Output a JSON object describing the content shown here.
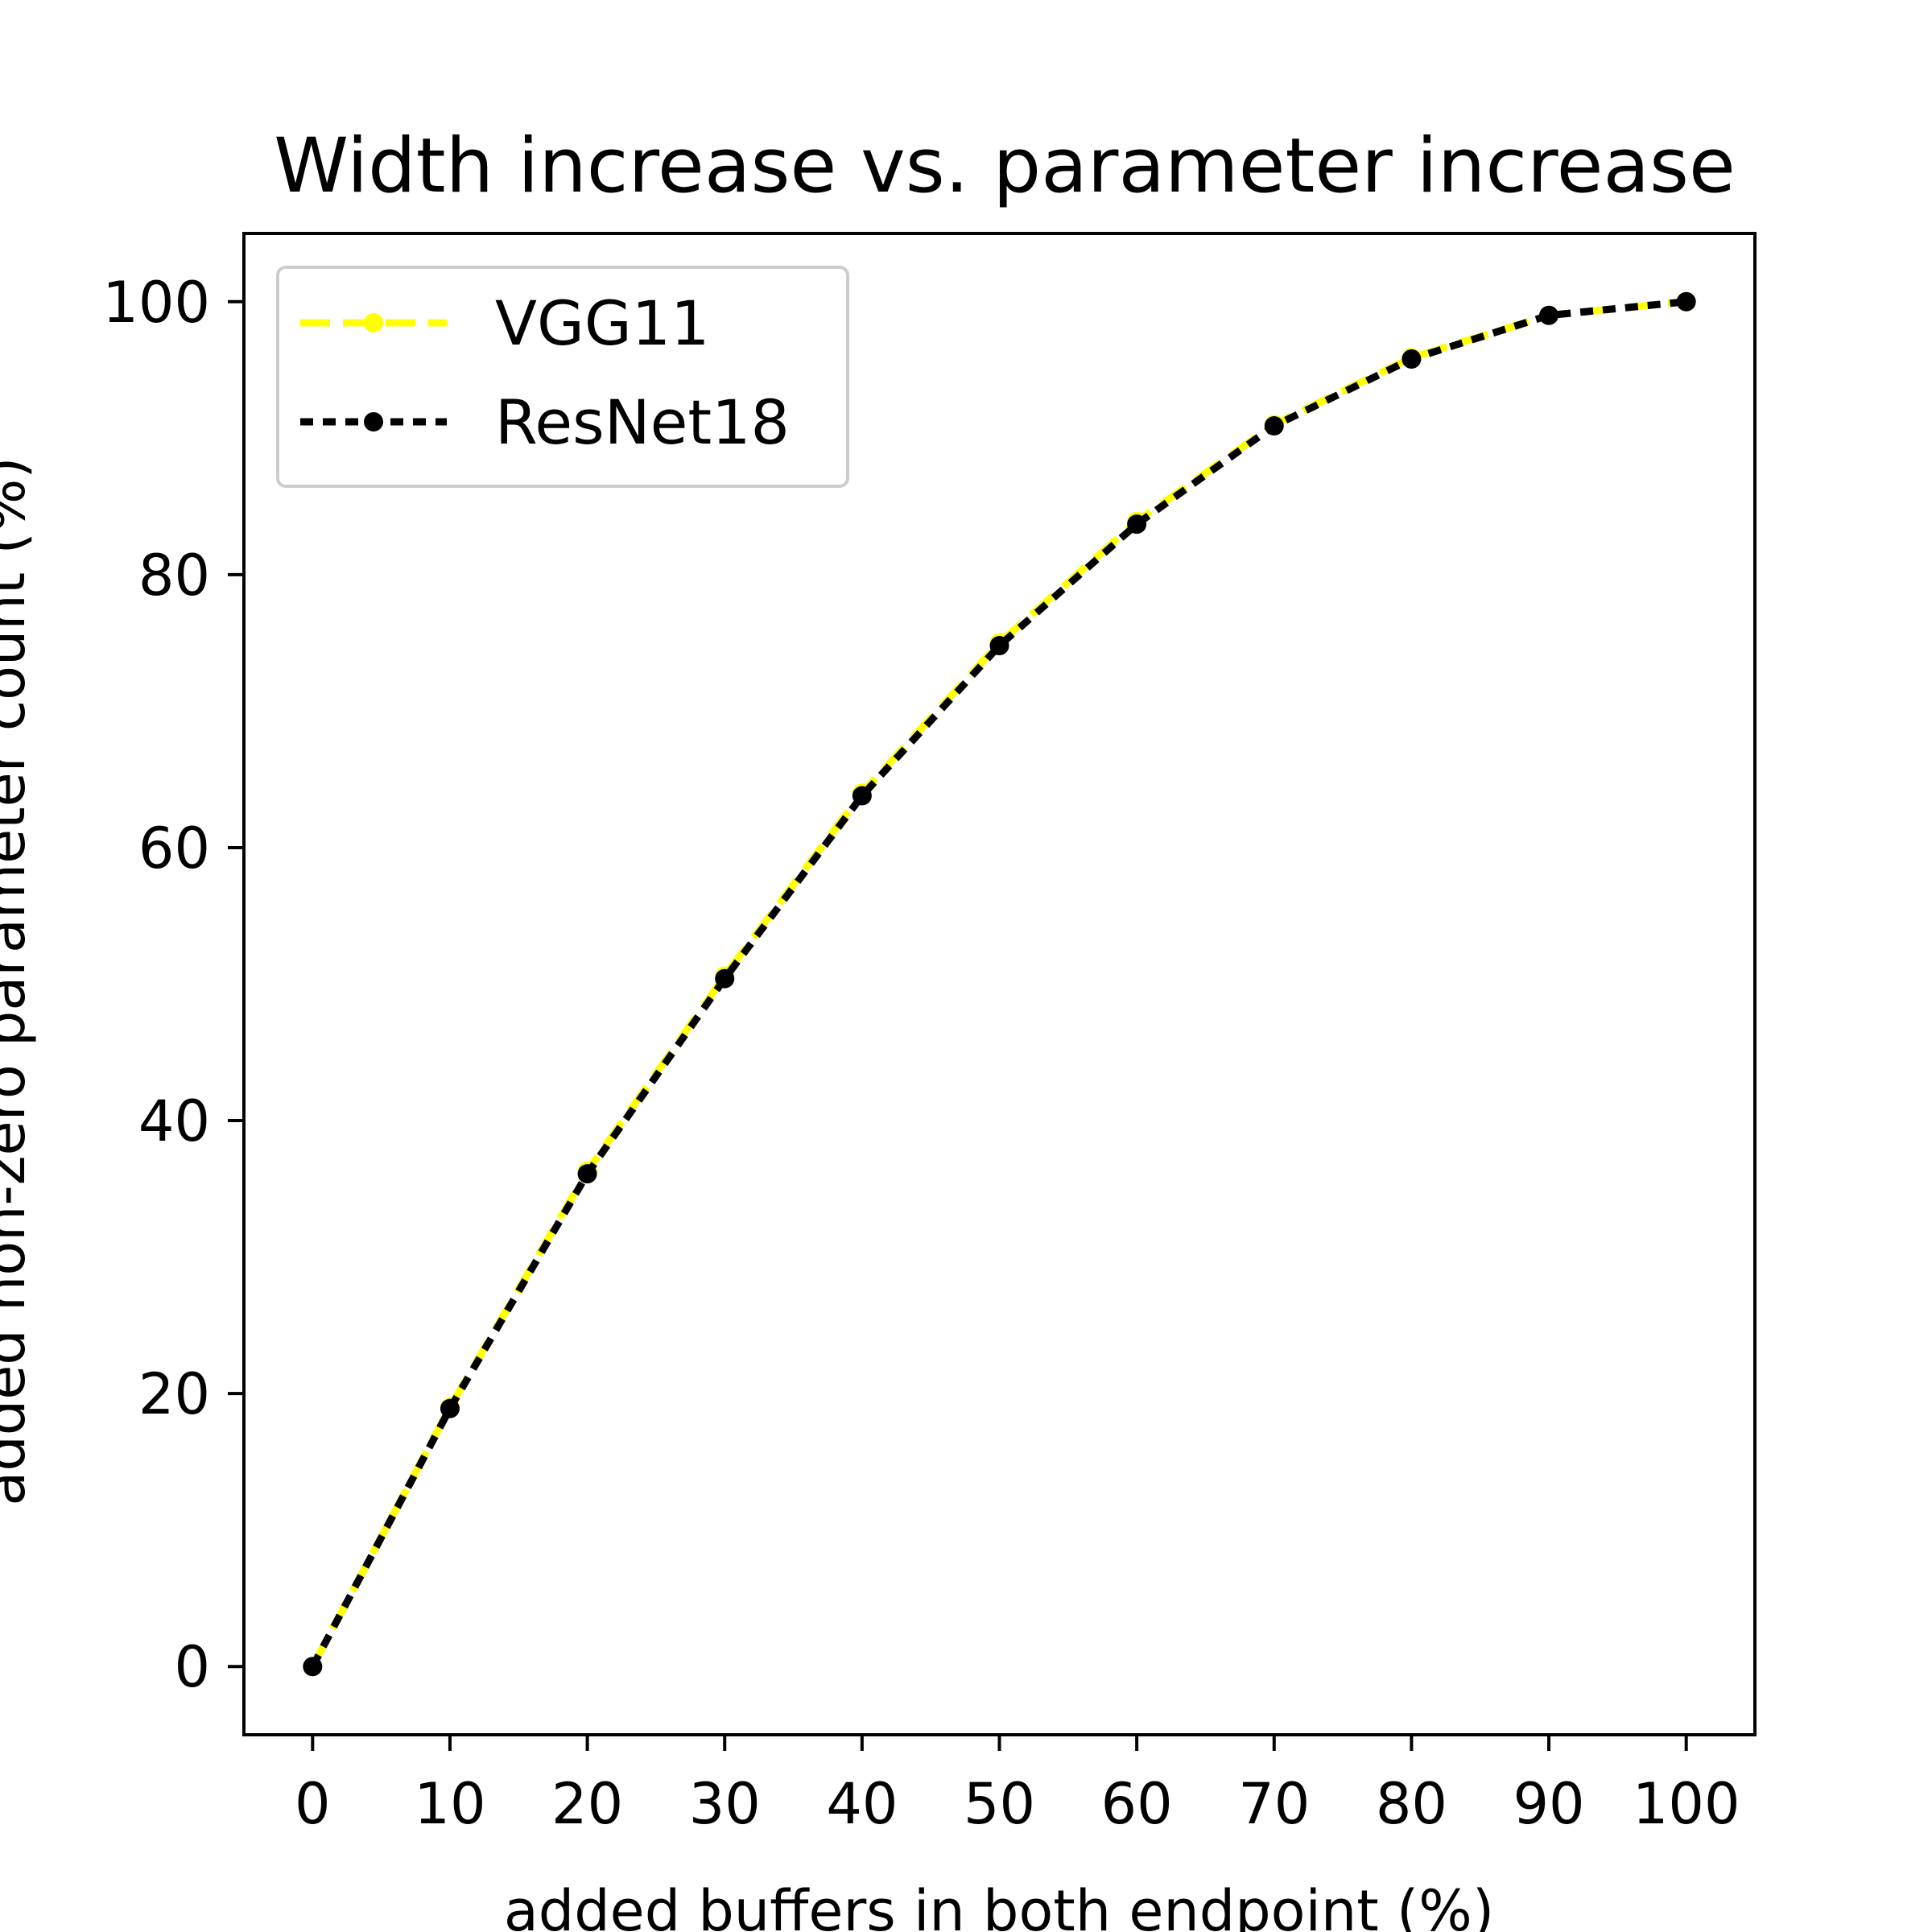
{
  "chart_data": {
    "type": "line",
    "title": "Width increase vs. parameter increase",
    "xlabel": "added buffers in both endpoint (%)",
    "ylabel": "added non-zero parameter count (%)",
    "xlim": [
      -5,
      105
    ],
    "ylim": [
      -5,
      105
    ],
    "xticks": [
      0,
      10,
      20,
      30,
      40,
      50,
      60,
      70,
      80,
      90,
      100
    ],
    "yticks": [
      0,
      20,
      40,
      60,
      80,
      100
    ],
    "grid": false,
    "legend_position": "upper-left",
    "x": [
      0,
      10,
      20,
      30,
      40,
      50,
      60,
      70,
      80,
      90,
      100
    ],
    "series": [
      {
        "name": "VGG11",
        "color": "#ffff00",
        "linestyle": "dashed",
        "marker": "circle",
        "values": [
          0,
          19.0,
          36.3,
          50.6,
          64.0,
          75.0,
          83.9,
          91.0,
          95.9,
          99.0,
          100
        ]
      },
      {
        "name": "ResNet18",
        "color": "#000000",
        "linestyle": "dotted",
        "marker": "circle",
        "values": [
          0,
          18.9,
          36.1,
          50.4,
          63.8,
          74.8,
          83.7,
          90.9,
          95.8,
          99.0,
          100
        ]
      }
    ]
  }
}
